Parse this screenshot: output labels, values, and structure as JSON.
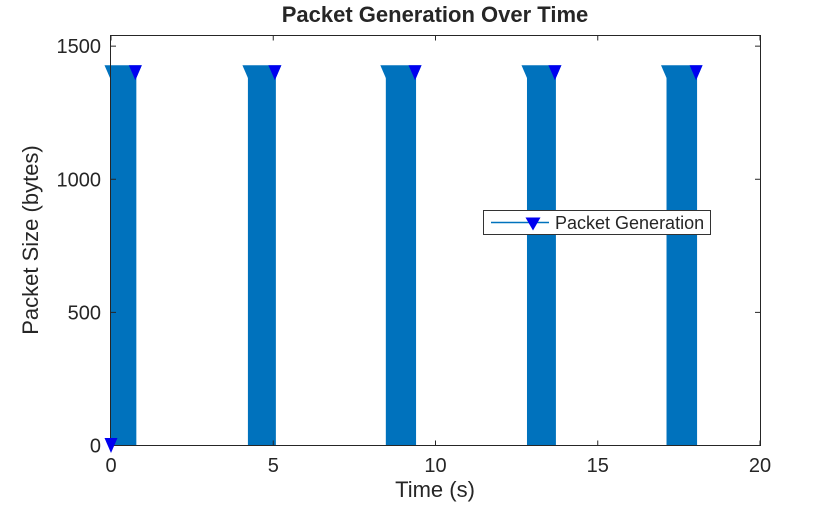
{
  "figure": {
    "background": "#ffffff"
  },
  "colors": {
    "stem_line": "#0072BD",
    "marker_fill": "#0000F0",
    "axis": "#262626",
    "text": "#262626",
    "legend_border": "#333333",
    "legend_background": "#ffffff"
  },
  "chart_data": {
    "type": "stem",
    "title": "Packet Generation Over Time",
    "xlabel": "Time (s)",
    "ylabel": "Packet Size (bytes)",
    "xlim": [
      0,
      20
    ],
    "ylim": [
      0,
      1540
    ],
    "x_ticks": [
      0,
      5,
      10,
      15,
      20
    ],
    "y_ticks": [
      0,
      500,
      1000,
      1500
    ],
    "grid": false,
    "box": true,
    "tick_direction": "in",
    "legend": {
      "entries": [
        "Packet Generation"
      ],
      "position": "center-right-inside"
    },
    "series": [
      {
        "name": "Packet Generation",
        "marker": "triangle-down-filled",
        "line_color": "#0072BD",
        "marker_color": "#0000F0",
        "packet_size_bytes": 1400,
        "bursts": [
          {
            "t_start": 0.0,
            "t_end": 0.75,
            "value": 1400
          },
          {
            "t_start": 4.25,
            "t_end": 5.05,
            "value": 1400
          },
          {
            "t_start": 8.5,
            "t_end": 9.37,
            "value": 1400
          },
          {
            "t_start": 12.85,
            "t_end": 13.68,
            "value": 1400
          },
          {
            "t_start": 17.15,
            "t_end": 18.03,
            "value": 1400
          }
        ],
        "extra_points": [
          {
            "t": 0,
            "value": 0
          }
        ]
      }
    ]
  }
}
